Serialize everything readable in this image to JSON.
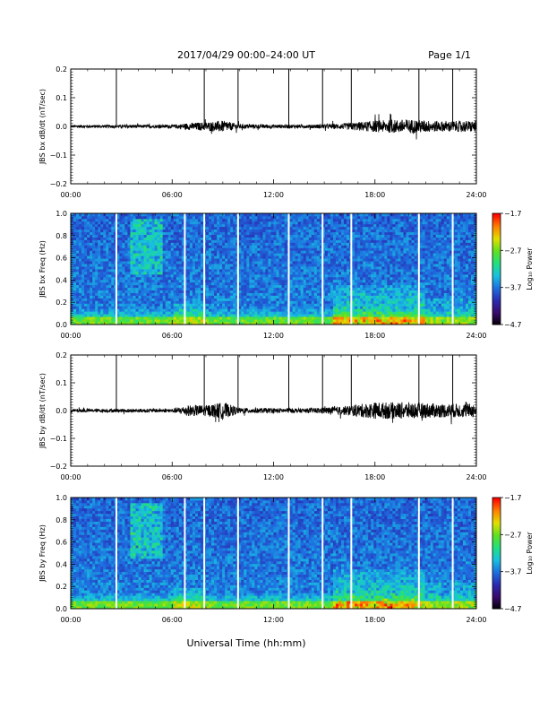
{
  "header": {
    "title": "2017/04/29  00:00–24:00 UT",
    "page": "Page 1/1"
  },
  "footer": {
    "xlabel": "Universal Time (hh:mm)"
  },
  "time_ticks": [
    "00:00",
    "06:00",
    "12:00",
    "18:00",
    "24:00"
  ],
  "colors": {
    "trace": "#000000",
    "spectrogram_colormap": [
      "#000000",
      "#3a0a6a",
      "#2a2ab0",
      "#1e6ee0",
      "#18c0e0",
      "#20e080",
      "#60e020",
      "#e0e000",
      "#ff8000",
      "#ff0000"
    ]
  },
  "chart_data": [
    {
      "type": "line",
      "ylabel": "JBS bx dB/dt (nT/sec)",
      "xlim": [
        0,
        24
      ],
      "ylim": [
        -0.2,
        0.2
      ],
      "yticks": [
        "0.2",
        "0.1",
        "0.0",
        "−0.1",
        "−0.2"
      ],
      "spikes_hours": [
        2.7,
        7.9,
        9.9,
        12.9,
        14.9,
        16.6,
        20.6,
        22.6
      ],
      "noise_envelope": {
        "x": [
          0,
          6,
          7,
          8,
          9,
          10,
          14,
          16,
          18,
          20,
          22,
          24
        ],
        "amplitude": [
          0.005,
          0.006,
          0.012,
          0.015,
          0.02,
          0.008,
          0.006,
          0.01,
          0.02,
          0.025,
          0.018,
          0.02
        ]
      }
    },
    {
      "type": "heatmap",
      "ylabel": "JBS bx Freq (Hz)",
      "xlim": [
        0,
        24
      ],
      "ylim": [
        0,
        1.0
      ],
      "yticks": [
        "1.0",
        "0.8",
        "0.6",
        "0.4",
        "0.2",
        "0.0"
      ],
      "colorbar": {
        "label": "Log₁₀ Power",
        "range": [
          -4.7,
          -1.7
        ],
        "ticks": [
          "−1.7",
          "−2.7",
          "−3.7",
          "−4.7"
        ]
      },
      "gaps_hours": [
        2.7,
        6.75,
        7.9,
        9.9,
        12.9,
        14.9,
        16.6,
        20.6,
        22.6
      ]
    },
    {
      "type": "line",
      "ylabel": "JBS by dB/dt (nT/sec)",
      "xlim": [
        0,
        24
      ],
      "ylim": [
        -0.2,
        0.2
      ],
      "yticks": [
        "0.2",
        "0.1",
        "0.0",
        "−0.1",
        "−0.2"
      ],
      "spikes_hours": [
        2.7,
        7.9,
        9.9,
        12.9,
        14.9,
        16.6,
        20.6,
        22.6
      ],
      "noise_envelope": {
        "x": [
          0,
          6,
          7,
          8,
          9,
          10,
          14,
          16,
          18,
          20,
          22,
          24
        ],
        "amplitude": [
          0.006,
          0.007,
          0.02,
          0.02,
          0.03,
          0.01,
          0.008,
          0.015,
          0.03,
          0.03,
          0.025,
          0.025
        ]
      }
    },
    {
      "type": "heatmap",
      "ylabel": "JBS by Freq (Hz)",
      "xlim": [
        0,
        24
      ],
      "ylim": [
        0,
        1.0
      ],
      "yticks": [
        "1.0",
        "0.8",
        "0.6",
        "0.4",
        "0.2",
        "0.0"
      ],
      "colorbar": {
        "label": "Log₁₀ Power",
        "range": [
          -4.7,
          -1.7
        ],
        "ticks": [
          "−1.7",
          "−2.7",
          "−3.7",
          "−4.7"
        ]
      },
      "gaps_hours": [
        2.7,
        6.75,
        7.9,
        9.9,
        12.9,
        14.9,
        16.6,
        20.6,
        22.6
      ]
    }
  ]
}
